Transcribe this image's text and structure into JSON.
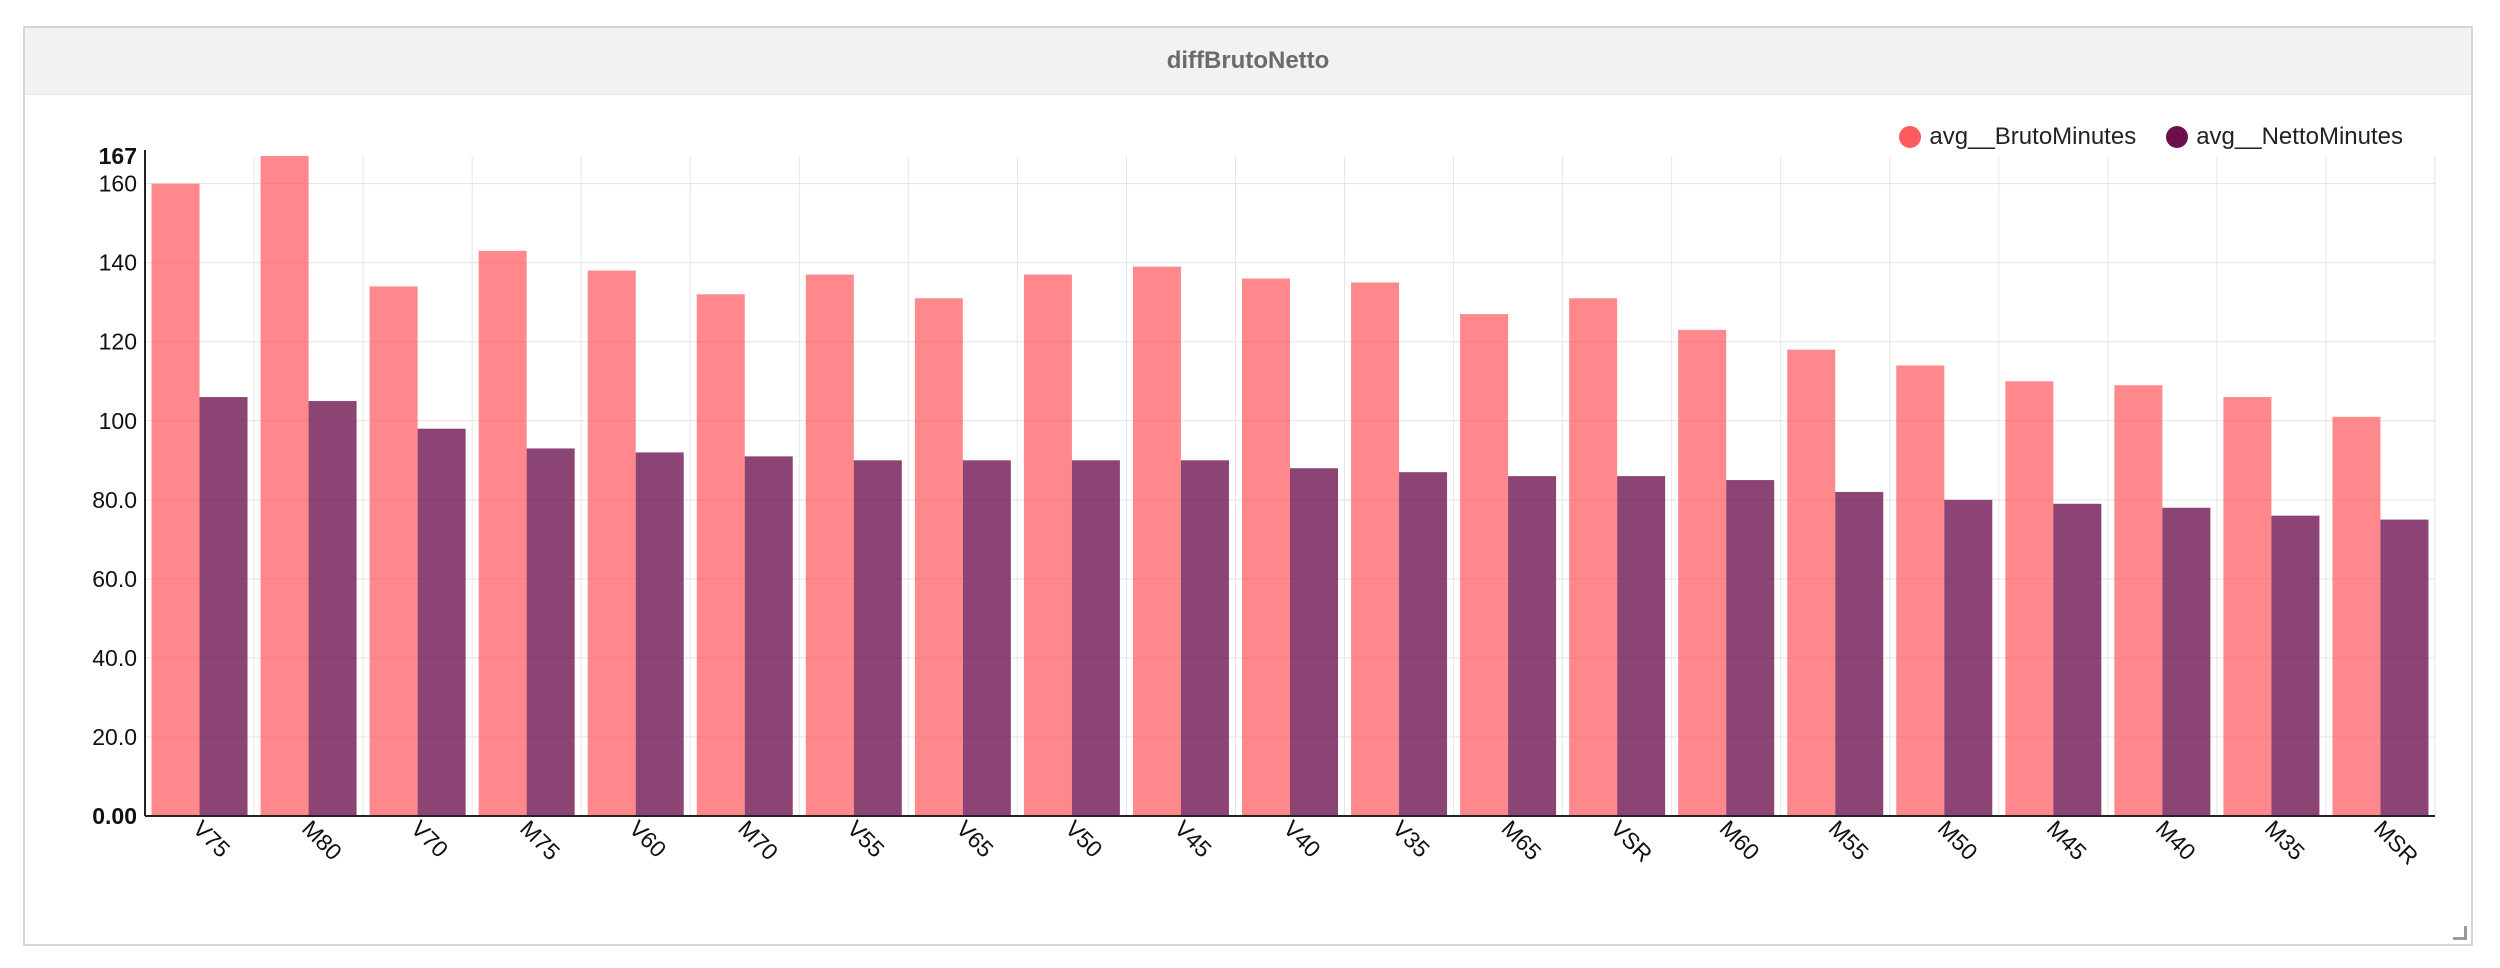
{
  "panel": {
    "title": "diffBrutoNetto"
  },
  "legend": [
    {
      "name": "avg__BrutoMinutes",
      "color": "#ff5a5f"
    },
    {
      "name": "avg__NettoMinutes",
      "color": "#6b0f4d"
    }
  ],
  "chart_data": {
    "type": "bar",
    "title": "diffBrutoNetto",
    "xlabel": "",
    "ylabel": "",
    "ylim": [
      0,
      167
    ],
    "y_ticks": [
      "0.00",
      "20.0",
      "40.0",
      "60.0",
      "80.0",
      "100",
      "120",
      "140",
      "160",
      "167"
    ],
    "grid": true,
    "legend_position": "top-right",
    "categories": [
      "V75",
      "M80",
      "V70",
      "M75",
      "V60",
      "M70",
      "V55",
      "V65",
      "V50",
      "V45",
      "V40",
      "V35",
      "M65",
      "VSR",
      "M60",
      "M55",
      "M50",
      "M45",
      "M40",
      "M35",
      "MSR"
    ],
    "series": [
      {
        "name": "avg__BrutoMinutes",
        "color": "#ff5a5f",
        "values": [
          160,
          167,
          134,
          143,
          138,
          132,
          137,
          131,
          137,
          139,
          136,
          135,
          127,
          131,
          123,
          118,
          114,
          110,
          109,
          106,
          101
        ]
      },
      {
        "name": "avg__NettoMinutes",
        "color": "#6b0f4d",
        "values": [
          106,
          105,
          98,
          93,
          92,
          91,
          90,
          90,
          90,
          90,
          88,
          87,
          86,
          86,
          85,
          82,
          80,
          79,
          78,
          76,
          75
        ]
      }
    ]
  }
}
